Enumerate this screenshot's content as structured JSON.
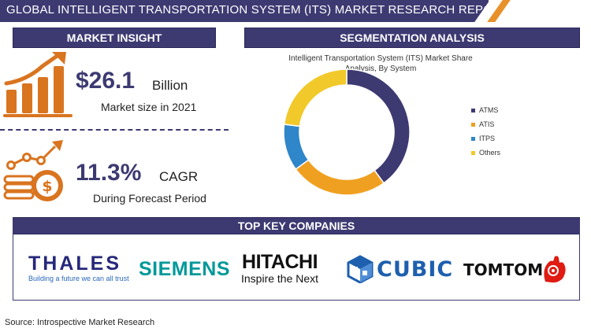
{
  "header": {
    "title": "GLOBAL INTELLIGENT TRANSPORTATION SYSTEM (ITS) MARKET RESEARCH REPORT"
  },
  "insight": {
    "title": "MARKET INSIGHT",
    "market_size": "$26.1",
    "market_unit": "Billion",
    "market_caption": "Market size in 2021",
    "cagr": "11.3%",
    "cagr_label": "CAGR",
    "cagr_caption": "During Forecast Period"
  },
  "segmentation": {
    "title": "SEGMENTATION ANALYSIS",
    "chart_title": "Intelligent Transportation System (ITS) Market Share Analysis, By System"
  },
  "chart_data": {
    "type": "pie",
    "title": "Intelligent Transportation System (ITS) Market Share Analysis, By System",
    "donut": true,
    "legend_position": "right",
    "categories": [
      "ATMS",
      "ATIS",
      "ITPS",
      "Others"
    ],
    "values": [
      40,
      25,
      12,
      23
    ],
    "colors": [
      "#3d3a72",
      "#f0a020",
      "#2f86c9",
      "#f1c92a"
    ]
  },
  "companies": {
    "title": "TOP KEY COMPANIES",
    "thales": {
      "name": "THALES",
      "tagline": "Building a future we can all trust"
    },
    "siemens": {
      "name": "SIEMENS"
    },
    "hitachi": {
      "name": "HITACHI",
      "tagline": "Inspire the Next"
    },
    "cubic": {
      "name": "CUBIC"
    },
    "tomtom": {
      "name": "TOMTOM"
    }
  },
  "source": "Source: Introspective Market Research",
  "colors": {
    "brand": "#3d3a72",
    "accent_orange": "#d9741f",
    "siemens_teal": "#009999",
    "tomtom_red": "#df1b12"
  }
}
